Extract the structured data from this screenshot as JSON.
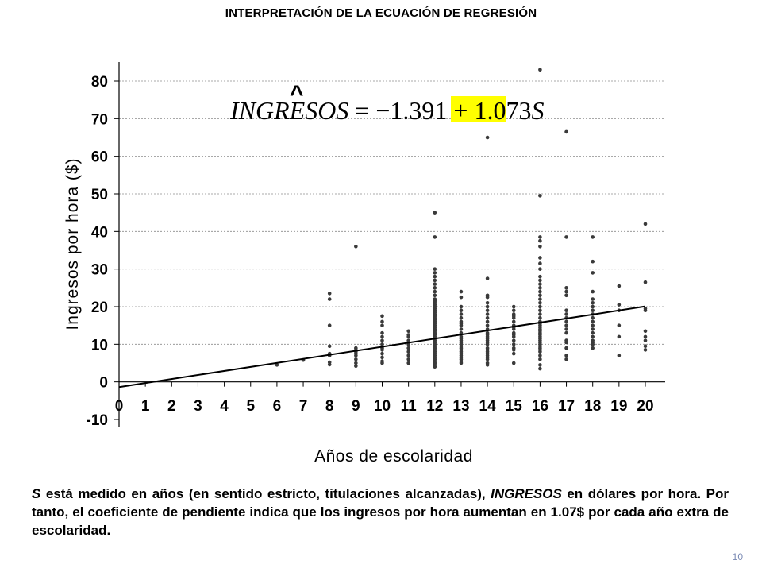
{
  "slide": {
    "title": "INTERPRETACIÓN DE LA ECUACIÓN DE REGRESIÓN",
    "page_number": "10",
    "caption": {
      "s1_var": "S",
      "s1_text": " está medido en años (en sentido estricto, titulaciones alcanzadas), ",
      "s1_var2": "INGRESOS",
      "s1_rest": " en dólares por hora.  Por tanto, el coeficiente de pendiente indica que los ingresos por hora aumentan en  1.07$ por cada año extra de escolaridad."
    },
    "equation": {
      "hat": "^",
      "lhs": "INGRESOS",
      "middle": " = −1.391 + ",
      "coef": "1.073",
      "var": "S",
      "highlight_color": "#ffff00"
    }
  },
  "chart_data": {
    "type": "scatter",
    "xlabel": "Años de escolaridad",
    "ylabel": "Ingresos por hora ($)",
    "xlim": [
      0,
      20
    ],
    "ylim": [
      -10,
      80
    ],
    "x_ticks": [
      0,
      1,
      2,
      3,
      4,
      5,
      6,
      7,
      8,
      9,
      10,
      11,
      12,
      13,
      14,
      15,
      16,
      17,
      18,
      19,
      20
    ],
    "y_ticks": [
      -10,
      0,
      10,
      20,
      30,
      40,
      50,
      60,
      70,
      80
    ],
    "grid": "horizontal-dashed",
    "regression_line": {
      "intercept": -1.391,
      "slope": 1.073,
      "x_range": [
        0,
        20
      ]
    },
    "points": [
      [
        6,
        4.5
      ],
      [
        7,
        5.8
      ],
      [
        8,
        4.6
      ],
      [
        8,
        5.2
      ],
      [
        8,
        7
      ],
      [
        8,
        7.5
      ],
      [
        8,
        9.5
      ],
      [
        8,
        15
      ],
      [
        8,
        22
      ],
      [
        8,
        23.5
      ],
      [
        9,
        4.2
      ],
      [
        9,
        5
      ],
      [
        9,
        6
      ],
      [
        9,
        7
      ],
      [
        9,
        7.5
      ],
      [
        9,
        8
      ],
      [
        9,
        8.5
      ],
      [
        9,
        9
      ],
      [
        9,
        36
      ],
      [
        10,
        5
      ],
      [
        10,
        5.5
      ],
      [
        10,
        6.5
      ],
      [
        10,
        7.5
      ],
      [
        10,
        8.5
      ],
      [
        10,
        9
      ],
      [
        10,
        10
      ],
      [
        10,
        11
      ],
      [
        10,
        12
      ],
      [
        10,
        13
      ],
      [
        10,
        15
      ],
      [
        10,
        16
      ],
      [
        10,
        17.5
      ],
      [
        11,
        5
      ],
      [
        11,
        6
      ],
      [
        11,
        7
      ],
      [
        11,
        8
      ],
      [
        11,
        9
      ],
      [
        11,
        10
      ],
      [
        11,
        10.5
      ],
      [
        11,
        11
      ],
      [
        11,
        12
      ],
      [
        11,
        12.5
      ],
      [
        11,
        13.5
      ],
      [
        12,
        4
      ],
      [
        12,
        4.5
      ],
      [
        12,
        5
      ],
      [
        12,
        5.5
      ],
      [
        12,
        6
      ],
      [
        12,
        6.5
      ],
      [
        12,
        7
      ],
      [
        12,
        7.5
      ],
      [
        12,
        8
      ],
      [
        12,
        8.5
      ],
      [
        12,
        9
      ],
      [
        12,
        9.5
      ],
      [
        12,
        10
      ],
      [
        12,
        10.5
      ],
      [
        12,
        11
      ],
      [
        12,
        11.5
      ],
      [
        12,
        12
      ],
      [
        12,
        12.5
      ],
      [
        12,
        13
      ],
      [
        12,
        13.5
      ],
      [
        12,
        14
      ],
      [
        12,
        14.5
      ],
      [
        12,
        15
      ],
      [
        12,
        15.5
      ],
      [
        12,
        16
      ],
      [
        12,
        16.5
      ],
      [
        12,
        17
      ],
      [
        12,
        17.5
      ],
      [
        12,
        18
      ],
      [
        12,
        18.5
      ],
      [
        12,
        19
      ],
      [
        12,
        19.5
      ],
      [
        12,
        20
      ],
      [
        12,
        20.5
      ],
      [
        12,
        21
      ],
      [
        12,
        21.5
      ],
      [
        12,
        22
      ],
      [
        12,
        23
      ],
      [
        12,
        24
      ],
      [
        12,
        25
      ],
      [
        12,
        26
      ],
      [
        12,
        27
      ],
      [
        12,
        28
      ],
      [
        12,
        29
      ],
      [
        12,
        30
      ],
      [
        12,
        38.5
      ],
      [
        12,
        45
      ],
      [
        13,
        5
      ],
      [
        13,
        5.5
      ],
      [
        13,
        6
      ],
      [
        13,
        6.5
      ],
      [
        13,
        7
      ],
      [
        13,
        7.5
      ],
      [
        13,
        8
      ],
      [
        13,
        8.5
      ],
      [
        13,
        9
      ],
      [
        13,
        9.5
      ],
      [
        13,
        10
      ],
      [
        13,
        10.5
      ],
      [
        13,
        11
      ],
      [
        13,
        11.5
      ],
      [
        13,
        12
      ],
      [
        13,
        13
      ],
      [
        13,
        14
      ],
      [
        13,
        15
      ],
      [
        13,
        15.5
      ],
      [
        13,
        16
      ],
      [
        13,
        17
      ],
      [
        13,
        18
      ],
      [
        13,
        19
      ],
      [
        13,
        20
      ],
      [
        13,
        22.5
      ],
      [
        13,
        24
      ],
      [
        14,
        4.5
      ],
      [
        14,
        5
      ],
      [
        14,
        6
      ],
      [
        14,
        6.5
      ],
      [
        14,
        7
      ],
      [
        14,
        7.5
      ],
      [
        14,
        8
      ],
      [
        14,
        8.5
      ],
      [
        14,
        9
      ],
      [
        14,
        10
      ],
      [
        14,
        10.5
      ],
      [
        14,
        11
      ],
      [
        14,
        11.5
      ],
      [
        14,
        12
      ],
      [
        14,
        12.5
      ],
      [
        14,
        13
      ],
      [
        14,
        14
      ],
      [
        14,
        15
      ],
      [
        14,
        16
      ],
      [
        14,
        17
      ],
      [
        14,
        18
      ],
      [
        14,
        19
      ],
      [
        14,
        20
      ],
      [
        14,
        21
      ],
      [
        14,
        22.5
      ],
      [
        14,
        23
      ],
      [
        14,
        27.5
      ],
      [
        14,
        65
      ],
      [
        15,
        5
      ],
      [
        15,
        7.5
      ],
      [
        15,
        8.5
      ],
      [
        15,
        9
      ],
      [
        15,
        10
      ],
      [
        15,
        11
      ],
      [
        15,
        12
      ],
      [
        15,
        12.5
      ],
      [
        15,
        13
      ],
      [
        15,
        14
      ],
      [
        15,
        14.5
      ],
      [
        15,
        15
      ],
      [
        15,
        16
      ],
      [
        15,
        17
      ],
      [
        15,
        17.5
      ],
      [
        15,
        18
      ],
      [
        15,
        19
      ],
      [
        15,
        20
      ],
      [
        16,
        3.5
      ],
      [
        16,
        4.5
      ],
      [
        16,
        6
      ],
      [
        16,
        7
      ],
      [
        16,
        8
      ],
      [
        16,
        8.5
      ],
      [
        16,
        9
      ],
      [
        16,
        9.5
      ],
      [
        16,
        10
      ],
      [
        16,
        10.5
      ],
      [
        16,
        11
      ],
      [
        16,
        11.5
      ],
      [
        16,
        12
      ],
      [
        16,
        12.5
      ],
      [
        16,
        13
      ],
      [
        16,
        13.5
      ],
      [
        16,
        14
      ],
      [
        16,
        14.5
      ],
      [
        16,
        15
      ],
      [
        16,
        15.5
      ],
      [
        16,
        16
      ],
      [
        16,
        17
      ],
      [
        16,
        18
      ],
      [
        16,
        19
      ],
      [
        16,
        20
      ],
      [
        16,
        21
      ],
      [
        16,
        22
      ],
      [
        16,
        23
      ],
      [
        16,
        24
      ],
      [
        16,
        25
      ],
      [
        16,
        26
      ],
      [
        16,
        27
      ],
      [
        16,
        28
      ],
      [
        16,
        30
      ],
      [
        16,
        31.5
      ],
      [
        16,
        33
      ],
      [
        16,
        36
      ],
      [
        16,
        37.5
      ],
      [
        16,
        38.5
      ],
      [
        16,
        49.5
      ],
      [
        16,
        83
      ],
      [
        17,
        6
      ],
      [
        17,
        7
      ],
      [
        17,
        9
      ],
      [
        17,
        10.5
      ],
      [
        17,
        11
      ],
      [
        17,
        13
      ],
      [
        17,
        14
      ],
      [
        17,
        15
      ],
      [
        17,
        16
      ],
      [
        17,
        17
      ],
      [
        17,
        18
      ],
      [
        17,
        19
      ],
      [
        17,
        23
      ],
      [
        17,
        24
      ],
      [
        17,
        25
      ],
      [
        17,
        38.5
      ],
      [
        17,
        66.5
      ],
      [
        18,
        9
      ],
      [
        18,
        10
      ],
      [
        18,
        10.5
      ],
      [
        18,
        11
      ],
      [
        18,
        12
      ],
      [
        18,
        13
      ],
      [
        18,
        14
      ],
      [
        18,
        15
      ],
      [
        18,
        16
      ],
      [
        18,
        17
      ],
      [
        18,
        18
      ],
      [
        18,
        19
      ],
      [
        18,
        20
      ],
      [
        18,
        21
      ],
      [
        18,
        22
      ],
      [
        18,
        24
      ],
      [
        18,
        29
      ],
      [
        18,
        32
      ],
      [
        18,
        38.5
      ],
      [
        19,
        7
      ],
      [
        19,
        12
      ],
      [
        19,
        15
      ],
      [
        19,
        19
      ],
      [
        19,
        20.5
      ],
      [
        19,
        25.5
      ],
      [
        20,
        8.5
      ],
      [
        20,
        9.5
      ],
      [
        20,
        11
      ],
      [
        20,
        12
      ],
      [
        20,
        13.5
      ],
      [
        20,
        19
      ],
      [
        20,
        19.5
      ],
      [
        20,
        26.5
      ],
      [
        20,
        42
      ]
    ],
    "point_color": "#3a3a3a",
    "line_color": "#000000"
  }
}
